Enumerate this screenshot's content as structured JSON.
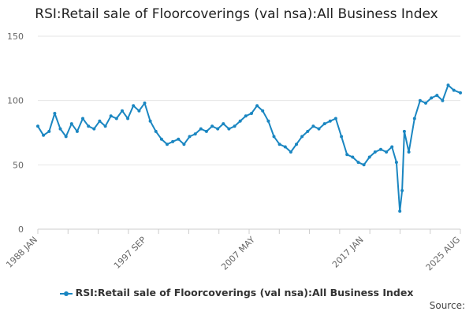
{
  "chart_data": {
    "type": "line",
    "title": "RSI:Retail sale of Floorcoverings (val nsa):All Business Index",
    "ylim": [
      0,
      150
    ],
    "y_ticks": [
      0,
      50,
      100,
      150
    ],
    "x_tick_labels": [
      "1988 JAN",
      "1997 SEP",
      "2007 MAY",
      "2017 JAN",
      "2025 AUG"
    ],
    "x_range": [
      "1988 JAN",
      "2025 AUG"
    ],
    "grid": "horizontal",
    "legend_position": "bottom",
    "series": [
      {
        "name": "RSI:Retail sale of Floorcoverings (val nsa):All Business Index",
        "color": "#1a86c1",
        "points": [
          [
            1988.0,
            80
          ],
          [
            1988.5,
            73
          ],
          [
            1989.0,
            76
          ],
          [
            1989.5,
            90
          ],
          [
            1990.0,
            78
          ],
          [
            1990.5,
            72
          ],
          [
            1991.0,
            82
          ],
          [
            1991.5,
            76
          ],
          [
            1992.0,
            86
          ],
          [
            1992.5,
            80
          ],
          [
            1993.0,
            78
          ],
          [
            1993.5,
            84
          ],
          [
            1994.0,
            80
          ],
          [
            1994.5,
            88
          ],
          [
            1995.0,
            86
          ],
          [
            1995.5,
            92
          ],
          [
            1996.0,
            86
          ],
          [
            1996.5,
            96
          ],
          [
            1997.0,
            92
          ],
          [
            1997.5,
            98
          ],
          [
            1998.0,
            84
          ],
          [
            1998.5,
            76
          ],
          [
            1999.0,
            70
          ],
          [
            1999.5,
            66
          ],
          [
            2000.0,
            68
          ],
          [
            2000.5,
            70
          ],
          [
            2001.0,
            66
          ],
          [
            2001.5,
            72
          ],
          [
            2002.0,
            74
          ],
          [
            2002.5,
            78
          ],
          [
            2003.0,
            76
          ],
          [
            2003.5,
            80
          ],
          [
            2004.0,
            78
          ],
          [
            2004.5,
            82
          ],
          [
            2005.0,
            78
          ],
          [
            2005.5,
            80
          ],
          [
            2006.0,
            84
          ],
          [
            2006.5,
            88
          ],
          [
            2007.0,
            90
          ],
          [
            2007.5,
            96
          ],
          [
            2008.0,
            92
          ],
          [
            2008.5,
            84
          ],
          [
            2009.0,
            72
          ],
          [
            2009.5,
            66
          ],
          [
            2010.0,
            64
          ],
          [
            2010.5,
            60
          ],
          [
            2011.0,
            66
          ],
          [
            2011.5,
            72
          ],
          [
            2012.0,
            76
          ],
          [
            2012.5,
            80
          ],
          [
            2013.0,
            78
          ],
          [
            2013.5,
            82
          ],
          [
            2014.0,
            84
          ],
          [
            2014.5,
            86
          ],
          [
            2015.0,
            72
          ],
          [
            2015.5,
            58
          ],
          [
            2016.0,
            56
          ],
          [
            2016.5,
            52
          ],
          [
            2017.0,
            50
          ],
          [
            2017.5,
            56
          ],
          [
            2018.0,
            60
          ],
          [
            2018.5,
            62
          ],
          [
            2019.0,
            60
          ],
          [
            2019.5,
            64
          ],
          [
            2019.9,
            52
          ],
          [
            2020.2,
            14
          ],
          [
            2020.4,
            30
          ],
          [
            2020.6,
            76
          ],
          [
            2021.0,
            60
          ],
          [
            2021.5,
            86
          ],
          [
            2022.0,
            100
          ],
          [
            2022.5,
            98
          ],
          [
            2023.0,
            102
          ],
          [
            2023.5,
            104
          ],
          [
            2024.0,
            100
          ],
          [
            2024.5,
            112
          ],
          [
            2025.0,
            108
          ],
          [
            2025.58,
            106
          ]
        ]
      }
    ]
  },
  "source": "Source:"
}
